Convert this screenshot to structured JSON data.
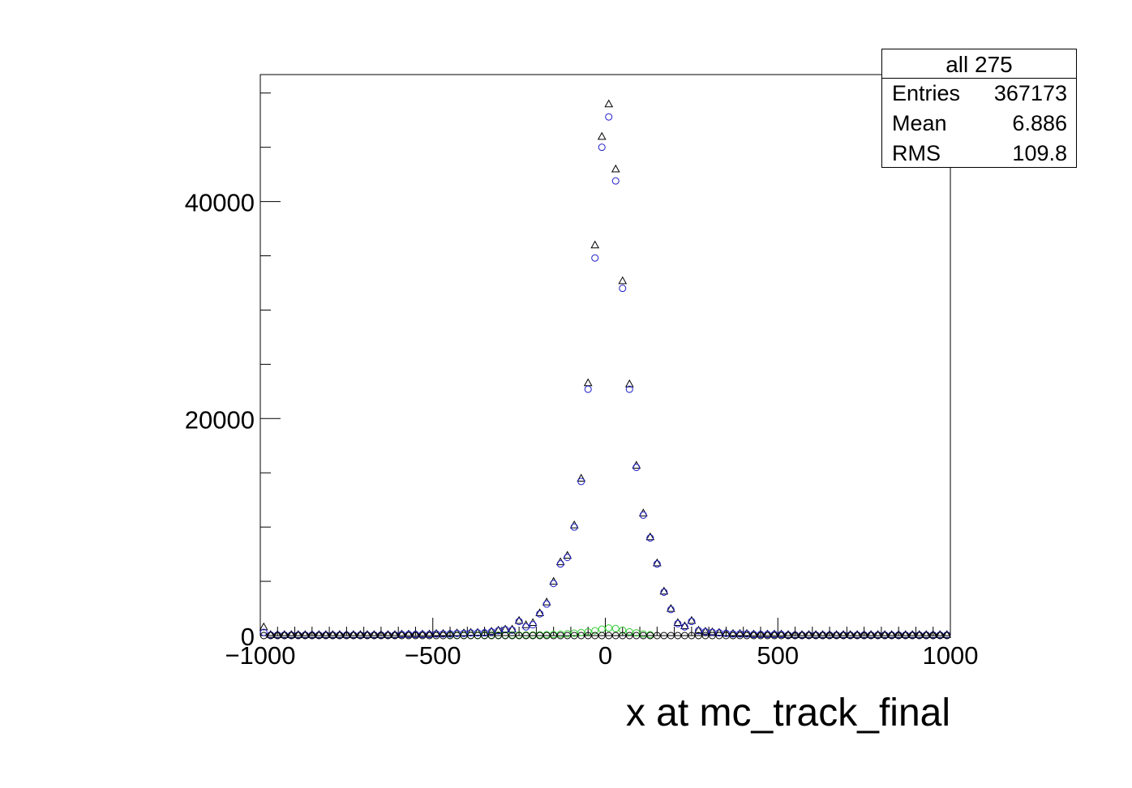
{
  "chart_data": {
    "type": "scatter",
    "xlabel": "x at mc_track_final",
    "ylabel": "",
    "xlim": [
      -1000,
      1000
    ],
    "ylim": [
      0,
      51700
    ],
    "x_ticks": [
      -1000,
      -500,
      0,
      500,
      1000
    ],
    "x_tick_labels": [
      "−1000",
      "−500",
      "0",
      "500",
      "1000"
    ],
    "y_ticks": [
      0,
      20000,
      40000
    ],
    "y_tick_labels": [
      "0",
      "20000",
      "40000"
    ],
    "grid": false,
    "colors": {
      "triangles": "#000000",
      "blue_circles": "#2020c8",
      "green_circles": "#33cc33",
      "black_circles": "#000000"
    },
    "series": [
      {
        "marker": "triangle",
        "color": "#000000",
        "x": [
          -990,
          -970,
          -950,
          -930,
          -910,
          -890,
          -870,
          -850,
          -830,
          -810,
          -790,
          -770,
          -750,
          -730,
          -710,
          -690,
          -670,
          -650,
          -630,
          -610,
          -590,
          -570,
          -550,
          -530,
          -510,
          -490,
          -470,
          -450,
          -430,
          -410,
          -390,
          -370,
          -350,
          -330,
          -310,
          -290,
          -270,
          -250,
          -230,
          -210,
          -190,
          -170,
          -150,
          -130,
          -110,
          -90,
          -70,
          -50,
          -30,
          -10,
          10,
          30,
          50,
          70,
          90,
          110,
          130,
          150,
          170,
          190,
          210,
          230,
          250,
          270,
          290,
          310,
          330,
          350,
          370,
          390,
          410,
          430,
          450,
          470,
          490,
          510,
          530,
          550,
          570,
          590,
          610,
          630,
          650,
          670,
          690,
          710,
          730,
          750,
          770,
          790,
          810,
          830,
          850,
          870,
          890,
          910,
          930,
          950,
          970,
          990
        ],
        "y": [
          800,
          100,
          100,
          100,
          100,
          100,
          100,
          100,
          100,
          100,
          100,
          100,
          100,
          100,
          100,
          100,
          100,
          100,
          100,
          100,
          150,
          150,
          150,
          150,
          150,
          200,
          200,
          200,
          250,
          250,
          300,
          300,
          300,
          400,
          500,
          600,
          600,
          1400,
          1000,
          1200,
          2100,
          3100,
          5000,
          6800,
          7400,
          10200,
          14500,
          23300,
          36000,
          46000,
          49000,
          43000,
          32700,
          23200,
          15700,
          11300,
          9100,
          6700,
          4100,
          2500,
          1200,
          900,
          1400,
          500,
          400,
          350,
          300,
          250,
          200,
          200,
          200,
          150,
          150,
          150,
          150,
          150,
          100,
          100,
          100,
          100,
          100,
          100,
          100,
          100,
          100,
          100,
          100,
          100,
          100,
          100,
          100,
          100,
          100,
          100,
          100,
          100,
          100,
          100,
          100,
          100
        ]
      },
      {
        "marker": "circle",
        "color": "#2020c8",
        "x": [
          -990,
          -970,
          -950,
          -930,
          -910,
          -890,
          -870,
          -850,
          -830,
          -810,
          -790,
          -770,
          -750,
          -730,
          -710,
          -690,
          -670,
          -650,
          -630,
          -610,
          -590,
          -570,
          -550,
          -530,
          -510,
          -490,
          -470,
          -450,
          -430,
          -410,
          -390,
          -370,
          -350,
          -330,
          -310,
          -290,
          -270,
          -250,
          -230,
          -210,
          -190,
          -170,
          -150,
          -130,
          -110,
          -90,
          -70,
          -50,
          -30,
          -10,
          10,
          30,
          50,
          70,
          90,
          110,
          130,
          150,
          170,
          190,
          210,
          230,
          250,
          270,
          290,
          310,
          330,
          350,
          370,
          390,
          410,
          430,
          450,
          470,
          490,
          510,
          530,
          550,
          570,
          590,
          610,
          630,
          650,
          670,
          690,
          710,
          730,
          750,
          770,
          790,
          810,
          830,
          850,
          870,
          890,
          910,
          930,
          950,
          970,
          990
        ],
        "y": [
          300,
          50,
          50,
          50,
          50,
          50,
          50,
          50,
          50,
          50,
          50,
          50,
          50,
          50,
          50,
          50,
          50,
          50,
          50,
          50,
          100,
          100,
          100,
          100,
          100,
          150,
          150,
          150,
          200,
          200,
          250,
          250,
          250,
          350,
          450,
          550,
          500,
          1300,
          800,
          1000,
          2000,
          2900,
          4800,
          6600,
          7200,
          10000,
          14200,
          22700,
          34800,
          45000,
          47800,
          41900,
          32000,
          22700,
          15500,
          11100,
          9000,
          6600,
          4000,
          2400,
          1100,
          800,
          1300,
          450,
          350,
          300,
          250,
          200,
          150,
          150,
          150,
          100,
          100,
          100,
          100,
          100,
          50,
          50,
          50,
          50,
          50,
          50,
          50,
          50,
          50,
          50,
          50,
          50,
          50,
          50,
          50,
          50,
          50,
          50,
          50,
          50,
          50,
          50,
          50,
          50
        ]
      },
      {
        "marker": "circle",
        "color": "#33cc33",
        "x": [
          -450,
          -430,
          -410,
          -390,
          -370,
          -350,
          -330,
          -310,
          -290,
          -270,
          -250,
          -230,
          -210,
          -190,
          -170,
          -150,
          -130,
          -110,
          -90,
          -70,
          -50,
          -30,
          -10,
          10,
          30,
          50,
          70,
          90,
          110,
          130
        ],
        "y": [
          20,
          20,
          20,
          20,
          30,
          30,
          40,
          40,
          40,
          50,
          50,
          60,
          60,
          70,
          80,
          100,
          130,
          170,
          220,
          280,
          350,
          450,
          600,
          700,
          650,
          500,
          350,
          250,
          150,
          80
        ]
      },
      {
        "marker": "circle",
        "color": "#000000",
        "x": [
          -990,
          -970,
          -950,
          -930,
          -910,
          -890,
          -870,
          -850,
          -830,
          -810,
          -790,
          -770,
          -750,
          -730,
          -710,
          -690,
          -670,
          -650,
          -630,
          -610,
          -590,
          -570,
          -550,
          -530,
          -510,
          -490,
          -470,
          -450,
          -430,
          -410,
          -390,
          -370,
          -350,
          -330,
          -310,
          -290,
          -270,
          -250,
          -230,
          -210,
          -190,
          -170,
          -150,
          -130,
          -110,
          -90,
          -70,
          -50,
          -30,
          -10,
          10,
          30,
          50,
          70,
          90,
          110,
          130,
          150,
          170,
          190,
          210,
          230,
          250,
          270,
          290,
          310,
          330,
          350,
          370,
          390,
          410,
          430,
          450,
          470,
          490,
          510,
          530,
          550,
          570,
          590,
          610,
          630,
          650,
          670,
          690,
          710,
          730,
          750,
          770,
          790,
          810,
          830,
          850,
          870,
          890,
          910,
          930,
          950,
          970,
          990
        ],
        "y": [
          0,
          0,
          0,
          0,
          0,
          0,
          0,
          0,
          0,
          0,
          0,
          0,
          0,
          0,
          0,
          0,
          0,
          0,
          0,
          0,
          0,
          0,
          0,
          0,
          0,
          0,
          0,
          0,
          0,
          0,
          0,
          0,
          0,
          0,
          0,
          0,
          0,
          0,
          0,
          0,
          0,
          0,
          0,
          0,
          0,
          0,
          0,
          0,
          0,
          0,
          0,
          0,
          0,
          0,
          0,
          0,
          0,
          0,
          0,
          0,
          0,
          0,
          0,
          0,
          0,
          0,
          0,
          0,
          0,
          0,
          0,
          0,
          0,
          0,
          0,
          0,
          0,
          0,
          0,
          0,
          0,
          0,
          0,
          0,
          0,
          0,
          0,
          0,
          0,
          0,
          0,
          0,
          0,
          0,
          0,
          0,
          0,
          0,
          0,
          0
        ]
      }
    ]
  },
  "stats": {
    "title": "all 275",
    "rows": [
      {
        "key": "Entries",
        "value": "367173"
      },
      {
        "key": "Mean",
        "value": "6.886"
      },
      {
        "key": "RMS",
        "value": "109.8"
      }
    ]
  }
}
